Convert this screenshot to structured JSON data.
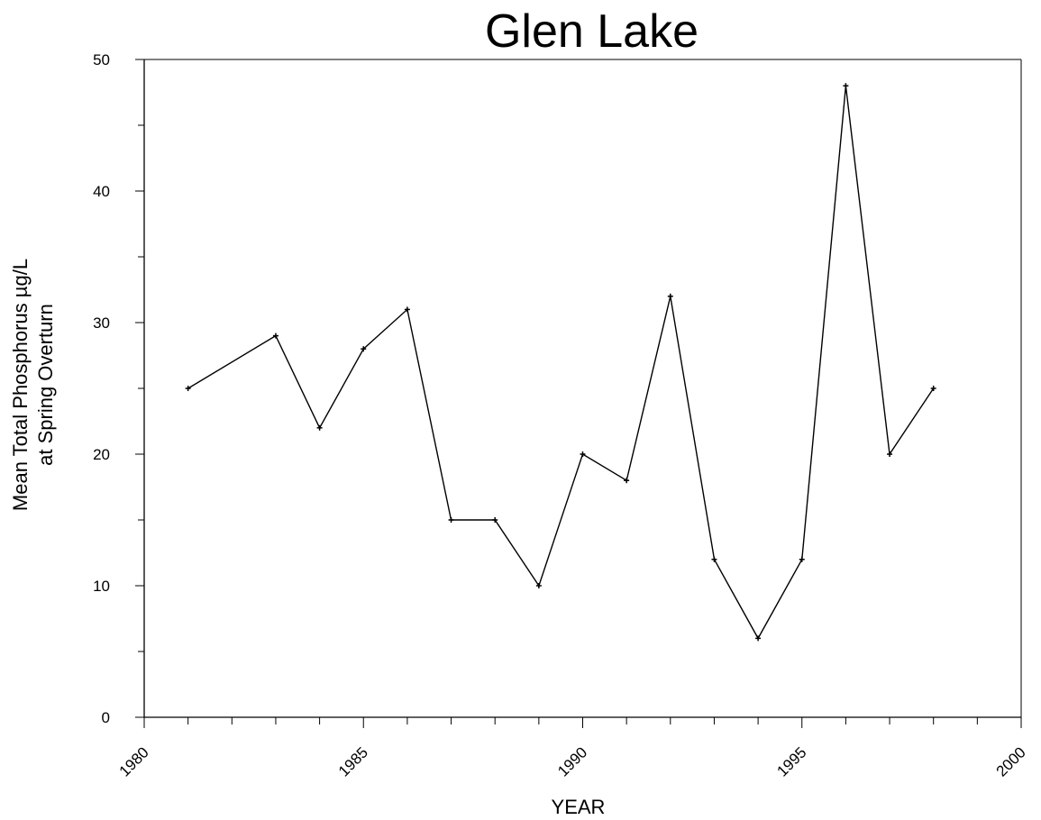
{
  "chart_data": {
    "type": "line",
    "title": "Glen Lake",
    "xlabel": "YEAR",
    "ylabel_lines": [
      "Mean Total Phosphorus µg/L",
      "at Spring Overturn"
    ],
    "xlim": [
      1980,
      2000
    ],
    "ylim": [
      0,
      50
    ],
    "x_ticks": [
      1980,
      1985,
      1990,
      1995,
      2000
    ],
    "x_minor_step": 1,
    "y_ticks": [
      0,
      10,
      20,
      30,
      40,
      50
    ],
    "y_minor_step": 5,
    "grid": false,
    "series": [
      {
        "x": [
          1981,
          1983,
          1984,
          1985,
          1986,
          1987,
          1988,
          1989,
          1990,
          1991,
          1992,
          1993,
          1994,
          1995,
          1996,
          1997,
          1998
        ],
        "y": [
          25,
          29,
          22,
          28,
          31,
          15,
          15,
          10,
          20,
          18,
          32,
          12,
          6,
          12,
          48,
          20,
          25
        ]
      }
    ],
    "colors": {
      "line": "#000000",
      "axis": "#000000"
    }
  }
}
